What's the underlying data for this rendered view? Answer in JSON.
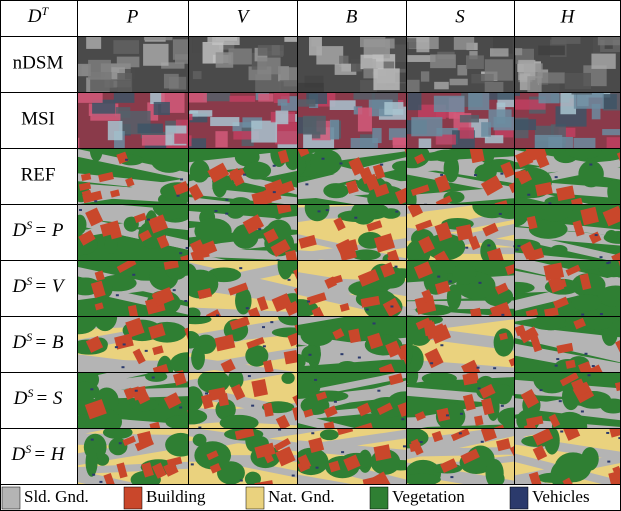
{
  "header": {
    "corner": {
      "base": "D",
      "sup": "T"
    },
    "columns": [
      "P",
      "V",
      "B",
      "S",
      "H"
    ]
  },
  "rows": [
    {
      "label": "nDSM",
      "kind": "ndsm"
    },
    {
      "label": "MSI",
      "kind": "msi"
    },
    {
      "label": "REF",
      "kind": "seg"
    },
    {
      "label": {
        "base": "D",
        "sup": "S",
        "rest": "= P"
      },
      "kind": "seg"
    },
    {
      "label": {
        "base": "D",
        "sup": "S",
        "rest": "= V"
      },
      "kind": "seg"
    },
    {
      "label": {
        "base": "D",
        "sup": "S",
        "rest": "= B"
      },
      "kind": "seg"
    },
    {
      "label": {
        "base": "D",
        "sup": "S",
        "rest": "= S"
      },
      "kind": "seg"
    },
    {
      "label": {
        "base": "D",
        "sup": "S",
        "rest": "= H"
      },
      "kind": "seg"
    }
  ],
  "legend": [
    {
      "label": "Sld. Gnd.",
      "color": "#b4b4b4"
    },
    {
      "label": "Building",
      "color": "#c9472b"
    },
    {
      "label": "Nat. Gnd.",
      "color": "#ead27e"
    },
    {
      "label": "Vegetation",
      "color": "#2f7f33"
    },
    {
      "label": "Vehicles",
      "color": "#2b3a6c"
    }
  ]
}
